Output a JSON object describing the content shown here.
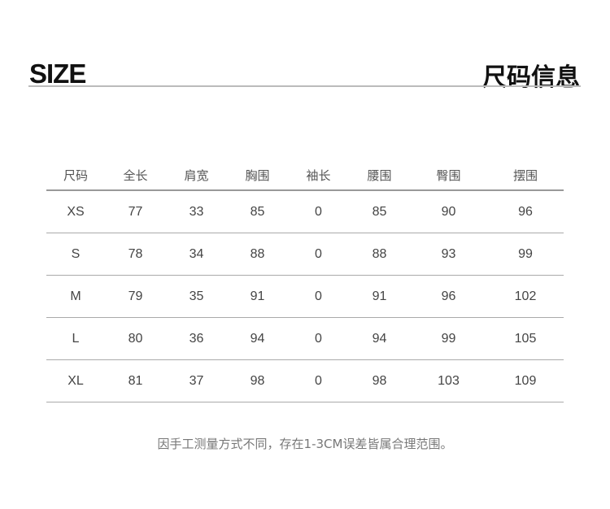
{
  "header": {
    "title_en": "SIZE",
    "title_cn": "尺码信息"
  },
  "table": {
    "columns": [
      "尺码",
      "全长",
      "肩宽",
      "胸围",
      "袖长",
      "腰围",
      "臀围",
      "摆围"
    ],
    "rows": [
      [
        "XS",
        "77",
        "33",
        "85",
        "0",
        "85",
        "90",
        "96"
      ],
      [
        "S",
        "78",
        "34",
        "88",
        "0",
        "88",
        "93",
        "99"
      ],
      [
        "M",
        "79",
        "35",
        "91",
        "0",
        "91",
        "96",
        "102"
      ],
      [
        "L",
        "80",
        "36",
        "94",
        "0",
        "94",
        "99",
        "105"
      ],
      [
        "XL",
        "81",
        "37",
        "98",
        "0",
        "98",
        "103",
        "109"
      ]
    ]
  },
  "note": "因手工测量方式不同，存在1-3CM误差皆属合理范围。"
}
